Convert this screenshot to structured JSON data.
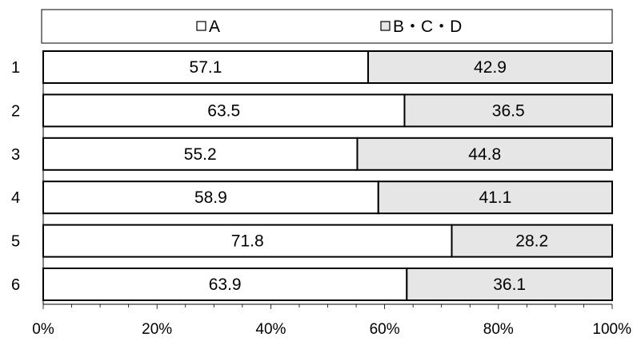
{
  "chart_data": {
    "type": "bar",
    "orientation": "horizontal",
    "stacked": true,
    "categories": [
      "1",
      "2",
      "3",
      "4",
      "5",
      "6"
    ],
    "series": [
      {
        "name": "A",
        "values": [
          57.1,
          63.5,
          55.2,
          58.9,
          71.8,
          63.9
        ],
        "color": "#ffffff"
      },
      {
        "name": "B・C・D",
        "values": [
          42.9,
          36.5,
          44.8,
          41.1,
          28.2,
          36.1
        ],
        "color": "#e6e6e6"
      }
    ],
    "x_ticks": [
      "0%",
      "20%",
      "40%",
      "60%",
      "80%",
      "100%"
    ],
    "xlim": [
      0,
      100
    ],
    "legend_position": "top",
    "grid": false,
    "title": "",
    "xlabel": "",
    "ylabel": ""
  }
}
